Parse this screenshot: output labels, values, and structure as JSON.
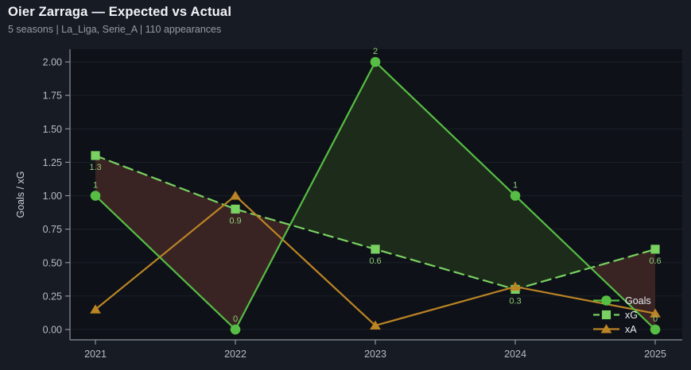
{
  "header": {
    "title": "Oier Zarraga — Expected vs Actual",
    "subtitle": "5 seasons | La_Liga, Serie_A | 110 appearances"
  },
  "chart_data": {
    "type": "line",
    "title": "Oier Zarraga — Expected vs Actual",
    "x": [
      2021,
      2022,
      2023,
      2024,
      2025
    ],
    "xtick_labels": [
      "2021",
      "2022",
      "2023",
      "2024",
      "2025"
    ],
    "ylabel": "Goals / xG",
    "yticks": [
      0,
      0.25,
      0.5,
      0.75,
      1.0,
      1.25,
      1.5,
      1.75,
      2.0
    ],
    "ytick_labels": [
      "0.00",
      "0.25",
      "0.50",
      "0.75",
      "1.00",
      "1.25",
      "1.50",
      "1.75",
      "2.00"
    ],
    "ylim": [
      -0.08,
      2.1
    ],
    "grid": "horizontal-faint",
    "legend_position": "lower-right",
    "series": [
      {
        "name": "Goals",
        "marker": "circle",
        "style": "solid",
        "color": "#56bd45",
        "values": [
          1,
          0,
          2,
          1,
          0
        ],
        "labels": [
          "1",
          "0",
          "2",
          "1",
          "0"
        ],
        "label_position": "above"
      },
      {
        "name": "xG",
        "marker": "square",
        "style": "dashed",
        "color": "#79d162",
        "values": [
          1.3,
          0.9,
          0.6,
          0.3,
          0.6
        ],
        "labels": [
          "1.3",
          "0.9",
          "0.6",
          "0.3",
          "0.6"
        ],
        "label_position": "below"
      },
      {
        "name": "xA",
        "marker": "triangle",
        "style": "solid",
        "color": "#bb8425",
        "values": [
          0.15,
          1.0,
          0.03,
          0.32,
          0.12
        ],
        "labels": [],
        "label_position": "none"
      }
    ],
    "fill_between": {
      "series": [
        "Goals",
        "xG"
      ],
      "over_color": "#1d2c1a",
      "under_color": "#3a2423"
    },
    "colors": {
      "page_bg": "#171b24",
      "plot_bg": "#0e1117",
      "grid": "#1b2029",
      "axis": "#8c929b",
      "tick_label": "#b6bcc4",
      "axis_label": "#ccd1d8",
      "value_label": "#8ecb7a",
      "legend_text": "#e8ebef"
    }
  }
}
